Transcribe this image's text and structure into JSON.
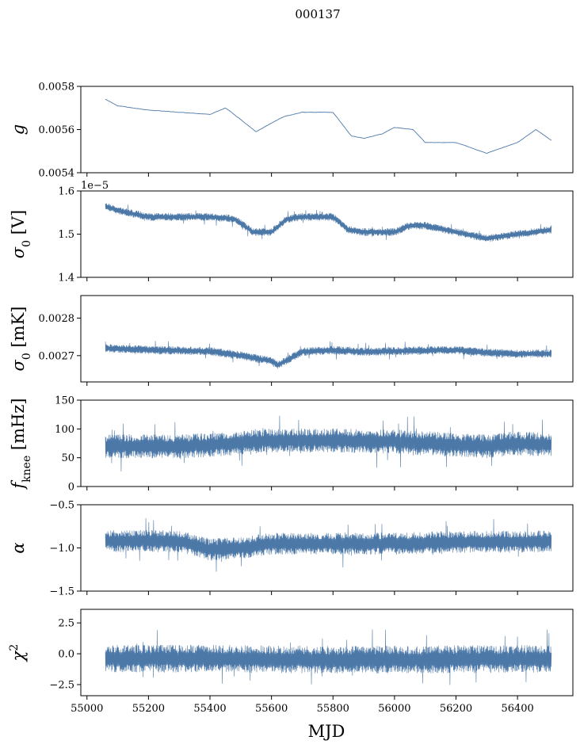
{
  "chart_data": {
    "type": "line",
    "title": "000137",
    "xlabel": "MJD",
    "xlim": [
      54980,
      56580
    ],
    "data_x_range": [
      55060,
      56510
    ],
    "xticks": [
      55000,
      55200,
      55400,
      55600,
      55800,
      56000,
      56200,
      56400
    ],
    "xtick_labels": [
      "55000",
      "55200",
      "55400",
      "55600",
      "55800",
      "56000",
      "56200",
      "56400"
    ],
    "series_color": "#4c78a8",
    "panels": [
      {
        "key": "g",
        "ylabel_main": "g",
        "ylabel_sub": "",
        "ylabel_tail": "",
        "ylim": [
          0.0054,
          0.0058
        ],
        "yticks": [
          0.0054,
          0.0056,
          0.0058
        ],
        "ytick_labels": [
          "0.0054",
          "0.0056",
          "0.0058"
        ],
        "offset_text": "",
        "style": "thin",
        "noise": 1.2e-06,
        "trend_x": [
          55060,
          55100,
          55200,
          55300,
          55400,
          55450,
          55470,
          55550,
          55600,
          55640,
          55700,
          55800,
          55860,
          55900,
          55960,
          56000,
          56060,
          56100,
          56200,
          56300,
          56400,
          56460,
          56510
        ],
        "trend_y": [
          0.00574,
          0.00571,
          0.00569,
          0.00568,
          0.00567,
          0.0057,
          0.00568,
          0.00559,
          0.00563,
          0.00566,
          0.00568,
          0.00568,
          0.00557,
          0.00556,
          0.00558,
          0.00561,
          0.0056,
          0.00554,
          0.00554,
          0.00549,
          0.00554,
          0.0056,
          0.00555
        ]
      },
      {
        "key": "sigma0_v",
        "ylabel_main": "σ",
        "ylabel_sub": "0",
        "ylabel_tail": " [V]",
        "ylim": [
          1.4,
          1.6
        ],
        "yticks": [
          1.4,
          1.5,
          1.6
        ],
        "ytick_labels": [
          "1.4",
          "1.5",
          "1.6"
        ],
        "offset_text": "1e−5",
        "style": "band",
        "noise": 0.006,
        "trend_x": [
          55060,
          55100,
          55200,
          55300,
          55400,
          55480,
          55540,
          55600,
          55650,
          55700,
          55800,
          55850,
          55900,
          56000,
          56050,
          56100,
          56200,
          56300,
          56400,
          56510
        ],
        "trend_y": [
          1.565,
          1.555,
          1.54,
          1.54,
          1.54,
          1.535,
          1.505,
          1.505,
          1.535,
          1.54,
          1.54,
          1.51,
          1.505,
          1.505,
          1.52,
          1.52,
          1.505,
          1.49,
          1.5,
          1.51
        ]
      },
      {
        "key": "sigma0_mk",
        "ylabel_main": "σ",
        "ylabel_sub": "0",
        "ylabel_tail": " [mK]",
        "ylim": [
          0.00263,
          0.00286
        ],
        "yticks": [
          0.0027,
          0.0028
        ],
        "ytick_labels": [
          "0.0027",
          "0.0028"
        ],
        "offset_text": "",
        "style": "band",
        "noise": 7.5e-06,
        "trend_x": [
          55060,
          55200,
          55400,
          55500,
          55600,
          55620,
          55700,
          55800,
          55900,
          56000,
          56200,
          56300,
          56400,
          56510
        ],
        "trend_y": [
          0.00272,
          0.002715,
          0.002712,
          0.0027,
          0.002685,
          0.002675,
          0.00271,
          0.002715,
          0.00271,
          0.002712,
          0.002715,
          0.002708,
          0.002705,
          0.002705
        ]
      },
      {
        "key": "fknee",
        "ylabel_main": "f",
        "ylabel_sub": "knee",
        "ylabel_tail": " [mHz]",
        "ylim": [
          0,
          150
        ],
        "yticks": [
          0,
          50,
          100,
          150
        ],
        "ytick_labels": [
          "0",
          "50",
          "100",
          "150"
        ],
        "offset_text": "",
        "style": "band",
        "noise": 14,
        "trend_x": [
          55060,
          55300,
          55400,
          55600,
          55800,
          56000,
          56200,
          56300,
          56400,
          56510
        ],
        "trend_y": [
          70,
          70,
          72,
          80,
          80,
          78,
          72,
          70,
          75,
          72
        ]
      },
      {
        "key": "alpha",
        "ylabel_main": "α",
        "ylabel_sub": "",
        "ylabel_tail": "",
        "ylim": [
          -1.5,
          -0.5
        ],
        "yticks": [
          -1.5,
          -1.0,
          -0.5
        ],
        "ytick_labels": [
          "−1.5",
          "−1.0",
          "−0.5"
        ],
        "offset_text": "",
        "style": "band",
        "noise": 0.085,
        "trend_x": [
          55060,
          55300,
          55400,
          55500,
          55600,
          55800,
          56000,
          56200,
          56400,
          56510
        ],
        "trend_y": [
          -0.92,
          -0.92,
          -1.02,
          -1.0,
          -0.95,
          -0.95,
          -0.95,
          -0.93,
          -0.93,
          -0.92
        ]
      },
      {
        "key": "chi2",
        "ylabel_main": "χ",
        "ylabel_sub": "",
        "ylabel_tail": "",
        "ylabel_sup": "2",
        "ylim": [
          -3.4,
          3.6
        ],
        "yticks": [
          -2.5,
          0.0,
          2.5
        ],
        "ytick_labels": [
          "−2.5",
          "0.0",
          "2.5"
        ],
        "offset_text": "",
        "style": "band",
        "noise": 0.75,
        "trend_x": [
          55060,
          55400,
          55800,
          56200,
          56510
        ],
        "trend_y": [
          -0.4,
          -0.4,
          -0.5,
          -0.45,
          -0.4
        ]
      }
    ]
  }
}
